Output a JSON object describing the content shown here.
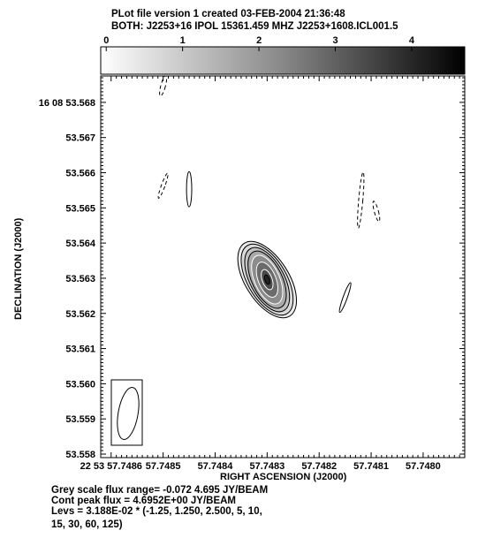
{
  "header": {
    "line1": "PLot file version 1  created 03-FEB-2004 21:36:48",
    "line2": "BOTH: J2253+16  IPOL  15361.459 MHZ  J2253+1608.ICL001.5"
  },
  "colorbar": {
    "ticks": [
      "0",
      "1",
      "2",
      "3",
      "4"
    ],
    "tick_values": [
      0,
      1,
      2,
      3,
      4
    ],
    "min": -0.072,
    "max": 4.695
  },
  "footer": {
    "line1": "Grey scale flux range= -0.072 4.695 JY/BEAM",
    "line2": "Cont peak flux =  4.6952E+00 JY/BEAM",
    "line3": "Levs = 3.188E-02 * (-1.25, 1.250, 2.500, 5, 10,",
    "line4": "15, 30, 60, 125)"
  },
  "chart_data": {
    "type": "contour",
    "title": "BOTH: J2253+16  IPOL  15361.459 MHZ  J2253+1608.ICL001.5",
    "xlabel": "RIGHT ASCENSION (J2000)",
    "ylabel": "DECLINATION (J2000)",
    "x_ticks": [
      {
        "label": "22 53 57.7486",
        "value": 57.7486
      },
      {
        "label": "57.7485",
        "value": 57.7485
      },
      {
        "label": "57.7484",
        "value": 57.7484
      },
      {
        "label": "57.7483",
        "value": 57.7483
      },
      {
        "label": "57.7482",
        "value": 57.7482
      },
      {
        "label": "57.7481",
        "value": 57.7481
      },
      {
        "label": "57.7480",
        "value": 57.748
      }
    ],
    "y_ticks": [
      {
        "label": "16 08 53.568",
        "value": 53.568
      },
      {
        "label": "53.567",
        "value": 53.567
      },
      {
        "label": "53.566",
        "value": 53.566
      },
      {
        "label": "53.565",
        "value": 53.565
      },
      {
        "label": "53.564",
        "value": 53.564
      },
      {
        "label": "53.563",
        "value": 53.563
      },
      {
        "label": "53.562",
        "value": 53.562
      },
      {
        "label": "53.561",
        "value": 53.561
      },
      {
        "label": "53.560",
        "value": 53.56
      },
      {
        "label": "53.559",
        "value": 53.559
      },
      {
        "label": "53.558",
        "value": 53.558
      }
    ],
    "xlim": [
      57.74862,
      57.74792
    ],
    "ylim": [
      53.5579,
      53.56875
    ],
    "grid": false,
    "greyscale_range": [
      -0.072,
      4.695
    ],
    "peak_flux": 4.6952,
    "base_level": 0.03188,
    "levels_multipliers": [
      -1.25,
      1.25,
      2.5,
      5,
      10,
      15,
      30,
      60,
      125
    ],
    "source_center": {
      "x": 57.7483,
      "y": 53.56296
    },
    "positive_contours": [
      {
        "level": 1.25,
        "rx": 4.2e-05,
        "ry": 0.00122,
        "angle": -32
      },
      {
        "level": 2.5,
        "rx": 3.75e-05,
        "ry": 0.00112,
        "angle": -30
      },
      {
        "level": 5,
        "rx": 3.3e-05,
        "ry": 0.001,
        "angle": -28
      },
      {
        "level": 10,
        "rx": 2.9e-05,
        "ry": 0.00088,
        "angle": -26
      },
      {
        "level": 15,
        "rx": 2.4e-05,
        "ry": 0.00074,
        "angle": -24
      },
      {
        "level": 30,
        "rx": 1.7e-05,
        "ry": 0.00053,
        "angle": -22
      },
      {
        "level": 60,
        "rx": 9.5e-06,
        "ry": 0.0003,
        "angle": -20
      },
      {
        "level": 125,
        "rx": 4.5e-06,
        "ry": 0.00014,
        "angle": -18
      }
    ],
    "noise_contours": [
      {
        "sign": "negative",
        "x": 57.7485,
        "y": 53.56847,
        "rx": 4.5e-06,
        "ry": 0.0003,
        "angle": 15
      },
      {
        "sign": "negative",
        "x": 57.7485,
        "y": 53.56563,
        "rx": 3.5e-06,
        "ry": 0.00038,
        "angle": 20
      },
      {
        "sign": "positive",
        "x": 57.74845,
        "y": 53.56553,
        "rx": 5e-06,
        "ry": 0.0005,
        "angle": 0
      },
      {
        "sign": "negative",
        "x": 57.74812,
        "y": 53.56522,
        "rx": 4e-06,
        "ry": 0.0008,
        "angle": 5
      },
      {
        "sign": "negative",
        "x": 57.74809,
        "y": 53.5649,
        "rx": 4e-06,
        "ry": 0.0003,
        "angle": -15
      },
      {
        "sign": "positive",
        "x": 57.74815,
        "y": 53.56245,
        "rx": 4e-06,
        "ry": 0.00045,
        "angle": 20
      }
    ],
    "beam": {
      "major": 0.0015,
      "minor": 1.9e-05,
      "angle": 10
    }
  }
}
